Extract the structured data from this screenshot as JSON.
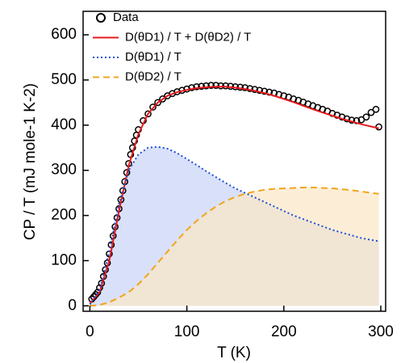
{
  "chart_data": {
    "type": "line",
    "xlabel": "T (K)",
    "ylabel": "CP / T (mJ mole-1 K-2)",
    "xlim": [
      -7,
      305
    ],
    "ylim": [
      -12,
      652
    ],
    "xticks": [
      0,
      100,
      200,
      300
    ],
    "yticks": [
      0,
      100,
      200,
      300,
      400,
      500,
      600
    ],
    "legend": "upper left",
    "series": [
      {
        "name": "Data",
        "color": "#000000",
        "marker": "circle",
        "x": [
          2,
          4,
          6,
          8,
          10,
          12,
          14,
          16,
          18,
          20,
          22,
          24,
          26,
          28,
          30,
          32,
          34,
          36,
          38,
          40,
          42,
          44,
          46,
          48,
          50,
          55,
          60,
          65,
          70,
          75,
          80,
          85,
          90,
          95,
          100,
          105,
          110,
          115,
          120,
          125,
          130,
          135,
          140,
          145,
          150,
          155,
          160,
          165,
          170,
          175,
          180,
          185,
          190,
          195,
          200,
          205,
          210,
          215,
          220,
          225,
          230,
          235,
          240,
          245,
          250,
          255,
          260,
          265,
          270,
          275,
          280,
          285,
          290,
          295,
          298
        ],
        "values": [
          15,
          20,
          25,
          30,
          40,
          50,
          65,
          80,
          95,
          115,
          135,
          155,
          175,
          195,
          215,
          235,
          255,
          275,
          295,
          315,
          335,
          350,
          365,
          378,
          390,
          410,
          425,
          440,
          450,
          458,
          465,
          470,
          474,
          477,
          480,
          483,
          485,
          486,
          487,
          488,
          488,
          487,
          487,
          486,
          485,
          484,
          483,
          481,
          479,
          477,
          475,
          473,
          471,
          468,
          465,
          462,
          458,
          455,
          451,
          447,
          443,
          439,
          435,
          431,
          426,
          422,
          418,
          414,
          411,
          410,
          412,
          418,
          428,
          435,
          396
        ]
      },
      {
        "name": "D(θD1) / T + D(θD2) / T",
        "color": "#e8191e",
        "dash": "solid",
        "x": [
          0,
          10,
          20,
          30,
          40,
          50,
          60,
          70,
          80,
          90,
          100,
          110,
          120,
          130,
          140,
          150,
          160,
          170,
          180,
          190,
          200,
          210,
          220,
          230,
          240,
          250,
          260,
          270,
          280,
          290,
          298
        ],
        "values": [
          5,
          30,
          100,
          210,
          310,
          380,
          425,
          450,
          465,
          473,
          478,
          482,
          484,
          485,
          485,
          483,
          480,
          476,
          471,
          465,
          458,
          451,
          443,
          435,
          428,
          421,
          414,
          408,
          402,
          397,
          393
        ]
      },
      {
        "name": "D(θD1) / T",
        "color": "#1c4fd6",
        "dash": "dot",
        "fill": "#c9d3f7",
        "x": [
          0,
          10,
          20,
          30,
          40,
          50,
          60,
          70,
          80,
          90,
          100,
          110,
          120,
          130,
          140,
          150,
          160,
          170,
          180,
          190,
          200,
          210,
          220,
          230,
          240,
          250,
          260,
          270,
          280,
          290,
          298
        ],
        "values": [
          3,
          35,
          120,
          225,
          300,
          335,
          350,
          352,
          348,
          338,
          325,
          312,
          298,
          285,
          272,
          260,
          250,
          240,
          230,
          220,
          210,
          200,
          192,
          184,
          176,
          168,
          162,
          156,
          150,
          146,
          143
        ]
      },
      {
        "name": "D(θD2) / T",
        "color": "#f2a51c",
        "dash": "dash",
        "fill": "#fbe7c4",
        "x": [
          0,
          10,
          20,
          30,
          40,
          50,
          60,
          70,
          80,
          90,
          100,
          110,
          120,
          130,
          140,
          150,
          160,
          170,
          180,
          190,
          200,
          210,
          220,
          230,
          240,
          250,
          260,
          270,
          280,
          290,
          298
        ],
        "values": [
          0,
          2,
          8,
          18,
          30,
          48,
          70,
          95,
          120,
          145,
          168,
          188,
          205,
          220,
          232,
          241,
          248,
          253,
          257,
          259,
          260,
          261,
          262,
          262,
          261,
          260,
          258,
          256,
          253,
          250,
          248
        ]
      }
    ]
  }
}
